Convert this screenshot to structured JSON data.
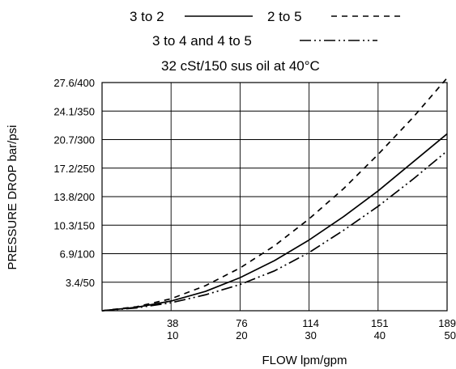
{
  "chart_data": {
    "type": "line",
    "title": "",
    "subtitle": "32 cSt/150 sus oil at 40°C",
    "xlabel": "FLOW lpm/gpm",
    "ylabel": "PRESSURE DROP bar/psi",
    "xlim": [
      0,
      50
    ],
    "ylim": [
      0,
      400
    ],
    "grid": true,
    "legend_placement": "top",
    "x_ticks": [
      {
        "value": 10,
        "label_top": "38",
        "label_bottom": "10"
      },
      {
        "value": 20,
        "label_top": "76",
        "label_bottom": "20"
      },
      {
        "value": 30,
        "label_top": "114",
        "label_bottom": "30"
      },
      {
        "value": 40,
        "label_top": "151",
        "label_bottom": "40"
      },
      {
        "value": 50,
        "label_top": "189",
        "label_bottom": "50"
      }
    ],
    "y_ticks": [
      {
        "value": 50,
        "label": "3.4/50"
      },
      {
        "value": 100,
        "label": "6.9/100"
      },
      {
        "value": 150,
        "label": "10.3/150"
      },
      {
        "value": 200,
        "label": "13.8/200"
      },
      {
        "value": 250,
        "label": "17.2/250"
      },
      {
        "value": 300,
        "label": "20.7/300"
      },
      {
        "value": 350,
        "label": "24.1/350"
      },
      {
        "value": 400,
        "label": "27.6/400"
      }
    ],
    "series": [
      {
        "name": "3 to 2",
        "style": "solid",
        "x": [
          0,
          5,
          10,
          15,
          20,
          25,
          30,
          35,
          40,
          45,
          50
        ],
        "y": [
          0,
          6,
          17,
          34,
          58,
          88,
          124,
          165,
          210,
          260,
          310
        ]
      },
      {
        "name": "2 to 5",
        "style": "dashed",
        "x": [
          0,
          5,
          10,
          15,
          20,
          25,
          30,
          35,
          40,
          45,
          50
        ],
        "y": [
          0,
          7,
          21,
          44,
          75,
          114,
          161,
          214,
          274,
          338,
          408
        ]
      },
      {
        "name": "3 to 4 and 4 to 5",
        "style": "dash-dot-dot",
        "x": [
          0,
          5,
          10,
          15,
          20,
          25,
          30,
          35,
          40,
          45,
          50
        ],
        "y": [
          0,
          5,
          14,
          28,
          46,
          70,
          102,
          141,
          183,
          230,
          280
        ]
      }
    ],
    "colors": {
      "line": "#000000",
      "grid": "#000000",
      "background": "#ffffff"
    }
  }
}
